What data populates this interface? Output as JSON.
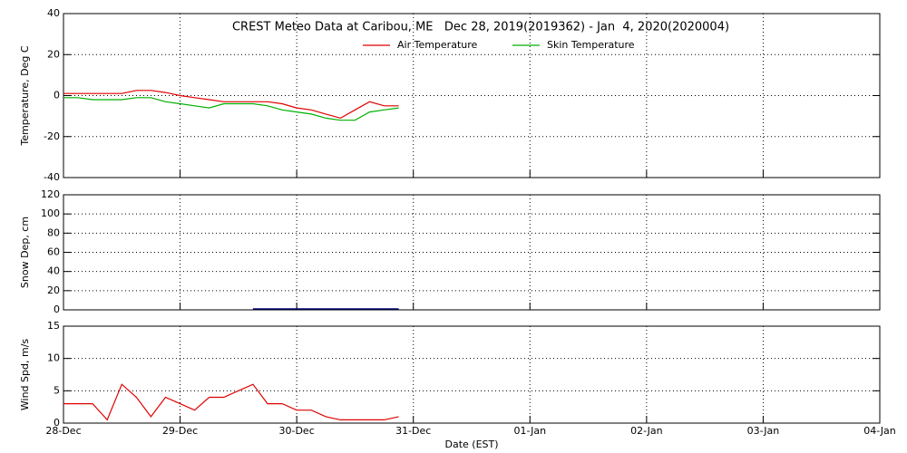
{
  "chart_data": [
    {
      "type": "line",
      "title": "CREST Meteo Data at Caribou, ME   Dec 28, 2019(2019362) - Jan  4, 2020(2020004)",
      "y_label": "Temperature, Deg C",
      "x": [
        "2019-12-28T00:00",
        "2019-12-28T03:00",
        "2019-12-28T06:00",
        "2019-12-28T09:00",
        "2019-12-28T12:00",
        "2019-12-28T15:00",
        "2019-12-28T18:00",
        "2019-12-28T21:00",
        "2019-12-29T00:00",
        "2019-12-29T03:00",
        "2019-12-29T06:00",
        "2019-12-29T09:00",
        "2019-12-29T12:00",
        "2019-12-29T15:00",
        "2019-12-29T18:00",
        "2019-12-29T21:00",
        "2019-12-30T00:00",
        "2019-12-30T03:00",
        "2019-12-30T06:00",
        "2019-12-30T09:00",
        "2019-12-30T12:00",
        "2019-12-30T15:00",
        "2019-12-30T18:00",
        "2019-12-30T21:00"
      ],
      "series": [
        {
          "name": "Air Temperature",
          "color": "#e00000",
          "values": [
            1,
            1,
            1,
            1,
            1,
            2.5,
            2.5,
            1.5,
            0,
            -1,
            -2,
            -3,
            -3,
            -3,
            -3,
            -4,
            -6,
            -7,
            -9,
            -11,
            -7,
            -3,
            -5,
            -5
          ]
        },
        {
          "name": "Skin Temperature",
          "color": "#00b000",
          "values": [
            -1,
            -1,
            -2,
            -2,
            -2,
            -1,
            -1,
            -3,
            -4,
            -5,
            -6,
            -4,
            -4,
            -4,
            -5,
            -7,
            -8,
            -9,
            -11,
            -12,
            -12,
            -8,
            -7,
            -6
          ]
        }
      ],
      "xlim": [
        "2019-12-28T00:00",
        "2020-01-04T00:00"
      ],
      "xticks": [
        "2019-12-28T00:00",
        "2019-12-29T00:00",
        "2019-12-30T00:00",
        "2019-12-31T00:00",
        "2020-01-01T00:00",
        "2020-01-02T00:00",
        "2020-01-03T00:00",
        "2020-01-04T00:00"
      ],
      "ylim": [
        -40,
        40
      ],
      "yticks": [
        -40,
        -20,
        0,
        20,
        40
      ],
      "grid": true,
      "legend": "top"
    },
    {
      "type": "line",
      "y_label": "Snow Dep, cm",
      "x": [
        "2019-12-29T15:00",
        "2019-12-29T18:00",
        "2019-12-29T21:00",
        "2019-12-30T00:00",
        "2019-12-30T03:00",
        "2019-12-30T06:00",
        "2019-12-30T09:00",
        "2019-12-30T12:00",
        "2019-12-30T15:00",
        "2019-12-30T18:00",
        "2019-12-30T21:00"
      ],
      "values": [
        1,
        1,
        1,
        1,
        1,
        1,
        1,
        1,
        1,
        1,
        1
      ],
      "color": "#000080",
      "xlim": [
        "2019-12-28T00:00",
        "2020-01-04T00:00"
      ],
      "xticks": [
        "2019-12-28T00:00",
        "2019-12-29T00:00",
        "2019-12-30T00:00",
        "2019-12-31T00:00",
        "2020-01-01T00:00",
        "2020-01-02T00:00",
        "2020-01-03T00:00",
        "2020-01-04T00:00"
      ],
      "ylim": [
        0,
        120
      ],
      "yticks": [
        0,
        20,
        40,
        60,
        80,
        100,
        120
      ],
      "grid": true
    },
    {
      "type": "line",
      "y_label": "Wind Spd, m/s",
      "x_label": "Date (EST)",
      "x": [
        "2019-12-28T00:00",
        "2019-12-28T03:00",
        "2019-12-28T06:00",
        "2019-12-28T09:00",
        "2019-12-28T12:00",
        "2019-12-28T15:00",
        "2019-12-28T18:00",
        "2019-12-28T21:00",
        "2019-12-29T00:00",
        "2019-12-29T03:00",
        "2019-12-29T06:00",
        "2019-12-29T09:00",
        "2019-12-29T12:00",
        "2019-12-29T15:00",
        "2019-12-29T18:00",
        "2019-12-29T21:00",
        "2019-12-30T00:00",
        "2019-12-30T03:00",
        "2019-12-30T06:00",
        "2019-12-30T09:00",
        "2019-12-30T12:00",
        "2019-12-30T15:00",
        "2019-12-30T18:00",
        "2019-12-30T21:00"
      ],
      "values": [
        3,
        3,
        3,
        0.5,
        6,
        4,
        1,
        4,
        3,
        2,
        4,
        4,
        5,
        6,
        3,
        3,
        2,
        2,
        1,
        0.5,
        0.5,
        0.5,
        0.5,
        1
      ],
      "color": "#e00000",
      "xlim": [
        "2019-12-28T00:00",
        "2020-01-04T00:00"
      ],
      "xticks": [
        {
          "value": "2019-12-28T00:00",
          "label": "28-Dec"
        },
        {
          "value": "2019-12-29T00:00",
          "label": "29-Dec"
        },
        {
          "value": "2019-12-30T00:00",
          "label": "30-Dec"
        },
        {
          "value": "2019-12-31T00:00",
          "label": "31-Dec"
        },
        {
          "value": "2020-01-01T00:00",
          "label": "01-Jan"
        },
        {
          "value": "2020-01-02T00:00",
          "label": "02-Jan"
        },
        {
          "value": "2020-01-03T00:00",
          "label": "03-Jan"
        },
        {
          "value": "2020-01-04T00:00",
          "label": "04-Jan"
        }
      ],
      "ylim": [
        0,
        15
      ],
      "yticks": [
        0,
        5,
        10,
        15
      ],
      "grid": true
    }
  ]
}
